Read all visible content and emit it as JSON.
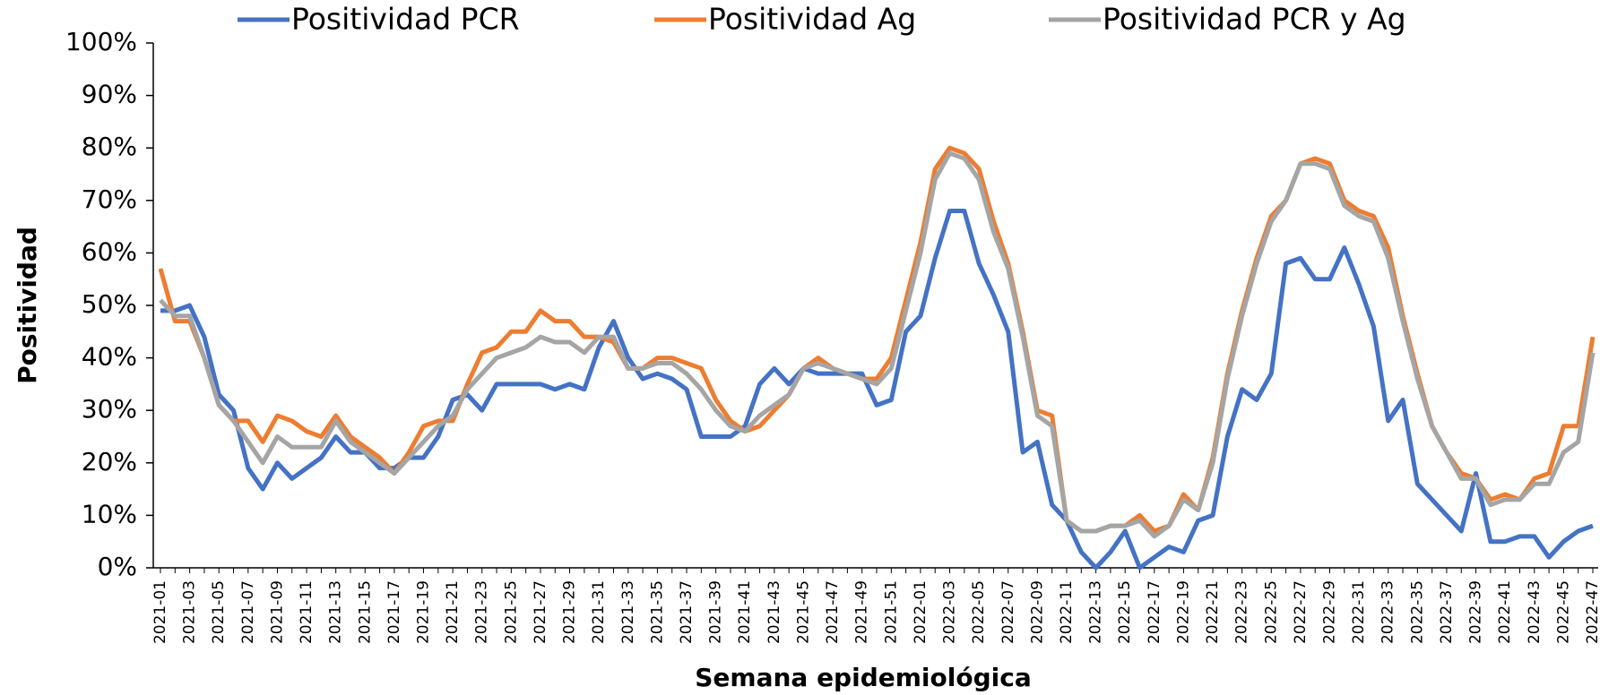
{
  "chart_data": {
    "type": "line",
    "x_label": "Semana epidemiológica",
    "y_label": "Positividad",
    "categories": [
      "2021-01",
      null,
      "2021-03",
      null,
      "2021-05",
      null,
      "2021-07",
      null,
      "2021-09",
      null,
      "2021-11",
      null,
      "2021-13",
      null,
      "2021-15",
      null,
      "2021-17",
      null,
      "2021-19",
      null,
      "2021-21",
      null,
      "2021-23",
      null,
      "2021-25",
      null,
      "2021-27",
      null,
      "2021-29",
      null,
      "2021-31",
      null,
      "2021-33",
      null,
      "2021-35",
      null,
      "2021-37",
      null,
      "2021-39",
      null,
      "2021-41",
      null,
      "2021-43",
      null,
      "2021-45",
      null,
      "2021-47",
      null,
      "2021-49",
      null,
      "2021-51",
      null,
      "2022-01",
      null,
      "2022-03",
      null,
      "2022-05",
      null,
      "2022-07",
      null,
      "2022-09",
      null,
      "2022-11",
      null,
      "2022-13",
      null,
      "2022-15",
      null,
      "2022-17",
      null,
      "2022-19",
      null,
      "2022-21",
      null,
      "2022-23",
      null,
      "2022-25",
      null,
      "2022-27",
      null,
      "2022-29",
      null,
      "2022-31",
      null,
      "2022-33",
      null,
      "2022-35",
      null,
      "2022-37",
      null,
      "2022-39",
      null,
      "2022-41",
      null,
      "2022-43",
      null,
      "2022-45",
      null,
      "2022-47"
    ],
    "series": [
      {
        "name": "Positividad PCR",
        "color": "#4472c4",
        "values": [
          49,
          49,
          50,
          44,
          33,
          30,
          19,
          15,
          20,
          17,
          19,
          21,
          25,
          22,
          22,
          19,
          19,
          21,
          21,
          25,
          32,
          33,
          30,
          35,
          35,
          35,
          35,
          34,
          35,
          34,
          42,
          47,
          40,
          36,
          37,
          36,
          34,
          25,
          25,
          25,
          27,
          35,
          38,
          35,
          38,
          37,
          37,
          37,
          37,
          31,
          32,
          45,
          48,
          59,
          68,
          68,
          58,
          52,
          45,
          22,
          24,
          12,
          9,
          3,
          0,
          3,
          7,
          0,
          2,
          4,
          3,
          9,
          10,
          25,
          34,
          32,
          37,
          58,
          59,
          55,
          55,
          61,
          54,
          46,
          28,
          32,
          16,
          13,
          10,
          7,
          18,
          5,
          5,
          6,
          6,
          2,
          5,
          7,
          8
        ]
      },
      {
        "name": "Positividad Ag",
        "color": "#ed7d31",
        "values": [
          57,
          47,
          47,
          40,
          31,
          28,
          28,
          24,
          29,
          28,
          26,
          25,
          29,
          25,
          23,
          21,
          18,
          22,
          27,
          28,
          28,
          35,
          41,
          42,
          45,
          45,
          49,
          47,
          47,
          44,
          44,
          43,
          38,
          38,
          40,
          40,
          39,
          38,
          32,
          28,
          26,
          27,
          30,
          33,
          38,
          40,
          38,
          37,
          36,
          36,
          40,
          51,
          62,
          76,
          80,
          79,
          76,
          66,
          58,
          45,
          30,
          29,
          9,
          7,
          7,
          8,
          8,
          10,
          7,
          8,
          14,
          11,
          21,
          37,
          49,
          59,
          67,
          70,
          77,
          78,
          77,
          70,
          68,
          67,
          61,
          48,
          37,
          27,
          22,
          18,
          17,
          13,
          14,
          13,
          17,
          18,
          27,
          27,
          44
        ]
      },
      {
        "name": "Positividad PCR y Ag",
        "color": "#a5a5a5",
        "values": [
          51,
          48,
          48,
          40,
          31,
          28,
          24,
          20,
          25,
          23,
          23,
          23,
          28,
          24,
          22,
          20,
          18,
          21,
          24,
          27,
          29,
          34,
          37,
          40,
          41,
          42,
          44,
          43,
          43,
          41,
          44,
          44,
          38,
          38,
          39,
          39,
          37,
          34,
          30,
          27,
          26,
          29,
          31,
          33,
          38,
          39,
          38,
          37,
          36,
          35,
          38,
          49,
          60,
          74,
          79,
          78,
          74,
          64,
          57,
          44,
          29,
          27,
          9,
          7,
          7,
          8,
          8,
          9,
          6,
          8,
          13,
          11,
          20,
          36,
          48,
          58,
          66,
          70,
          77,
          77,
          76,
          69,
          67,
          66,
          59,
          47,
          36,
          27,
          22,
          17,
          17,
          12,
          13,
          13,
          16,
          16,
          22,
          24,
          41
        ]
      }
    ],
    "ylim": [
      0,
      100
    ],
    "yticks": [
      {
        "value": 0,
        "label": "0%"
      },
      {
        "value": 10,
        "label": "10%"
      },
      {
        "value": 20,
        "label": "20%"
      },
      {
        "value": 30,
        "label": "30%"
      },
      {
        "value": 40,
        "label": "40%"
      },
      {
        "value": 50,
        "label": "50%"
      },
      {
        "value": 60,
        "label": "60%"
      },
      {
        "value": 70,
        "label": "70%"
      },
      {
        "value": 80,
        "label": "80%"
      },
      {
        "value": 90,
        "label": "90%"
      },
      {
        "value": 100,
        "label": "100%"
      }
    ],
    "legend": "top"
  }
}
